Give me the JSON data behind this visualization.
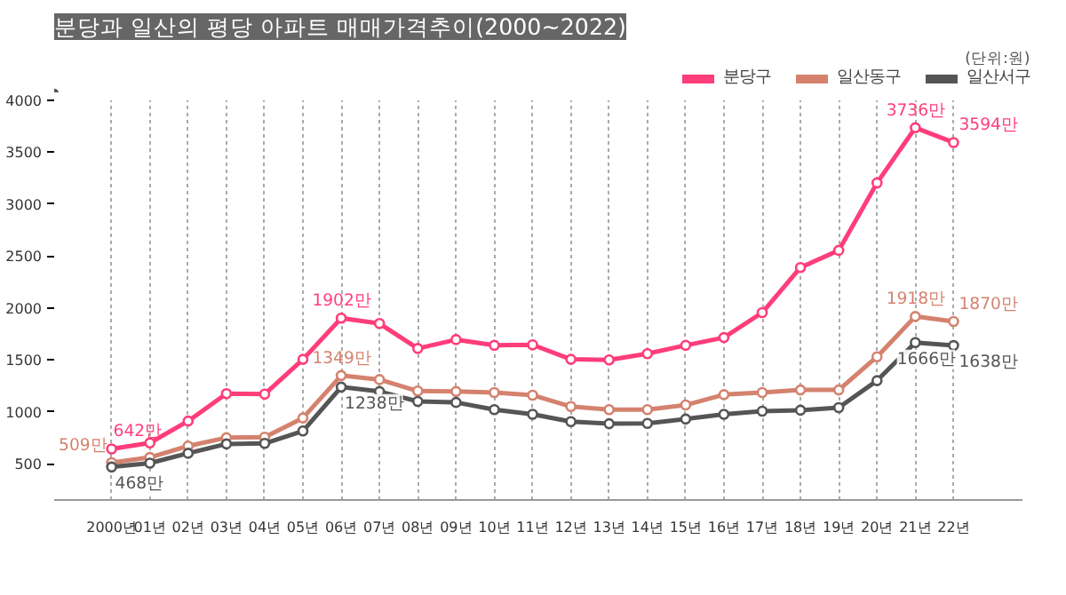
{
  "chart_data": {
    "type": "line",
    "title": "분당과 일산의 평당 아파트 매매가격추이(2000~2022)",
    "annotations": [
      "(단위:원)"
    ],
    "categories": [
      "2000년",
      "01년",
      "02년",
      "03년",
      "04년",
      "05년",
      "06년",
      "07년",
      "08년",
      "09년",
      "10년",
      "11년",
      "12년",
      "13년",
      "14년",
      "15년",
      "16년",
      "17년",
      "18년",
      "19년",
      "20년",
      "21년",
      "22년"
    ],
    "series": [
      {
        "name": "분당구",
        "color": "#ff3d7a",
        "values": [
          642,
          700,
          910,
          1175,
          1170,
          1505,
          1902,
          1850,
          1610,
          1695,
          1640,
          1645,
          1505,
          1500,
          1560,
          1640,
          1715,
          1955,
          2390,
          2555,
          3205,
          3736,
          3594
        ],
        "value_labels": [
          "642만",
          null,
          null,
          null,
          null,
          null,
          "1902만",
          null,
          null,
          null,
          null,
          null,
          null,
          null,
          null,
          null,
          null,
          null,
          null,
          null,
          null,
          "3736만",
          "3594만"
        ]
      },
      {
        "name": "일산동구",
        "color": "#d4826e",
        "values": [
          509,
          560,
          670,
          750,
          755,
          940,
          1349,
          1310,
          1200,
          1195,
          1185,
          1160,
          1050,
          1020,
          1020,
          1065,
          1165,
          1185,
          1210,
          1210,
          1530,
          1918,
          1870
        ],
        "value_labels": [
          "509만",
          null,
          null,
          null,
          null,
          null,
          "1349만",
          null,
          null,
          null,
          null,
          null,
          null,
          null,
          null,
          null,
          null,
          null,
          null,
          null,
          null,
          "1918만",
          "1870만"
        ]
      },
      {
        "name": "일산서구",
        "color": "#555555",
        "values": [
          468,
          505,
          600,
          690,
          695,
          815,
          1238,
          1195,
          1100,
          1090,
          1020,
          975,
          905,
          885,
          888,
          930,
          975,
          1005,
          1015,
          1040,
          1300,
          1666,
          1638
        ],
        "value_labels": [
          "468만",
          null,
          null,
          null,
          null,
          null,
          "1238만",
          null,
          null,
          null,
          null,
          null,
          null,
          null,
          null,
          null,
          null,
          null,
          null,
          null,
          null,
          "1666만",
          "1638만"
        ]
      }
    ],
    "ylim": [
      150,
      4000
    ],
    "yticks": [
      500,
      1000,
      1500,
      2000,
      2500,
      3000,
      3500,
      4000
    ],
    "grid": "x",
    "legend": "top right",
    "marker": "circle",
    "line_style": "solid"
  }
}
